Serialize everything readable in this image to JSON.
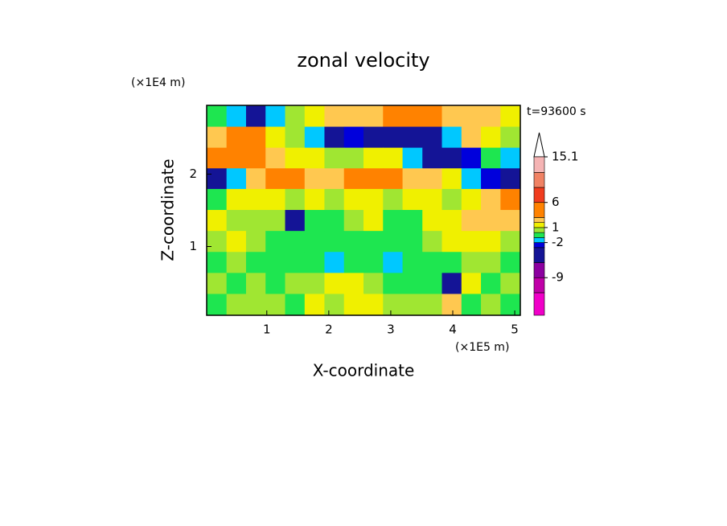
{
  "chart_data": {
    "type": "contour",
    "title": "zonal velocity",
    "x_label": "X-coordinate",
    "y_label": "Z-coordinate",
    "x_unit": "(×1E5 m)",
    "y_unit": "(×1E4 m)",
    "time_label": "t=93600 s",
    "xlim": [
      0.03,
      5.09
    ],
    "ylim": [
      0.05,
      2.95
    ],
    "xticks": [
      1,
      2,
      3,
      4,
      5
    ],
    "yticks": [
      1,
      2
    ],
    "x": [
      0.19,
      0.51,
      0.82,
      1.14,
      1.45,
      1.77,
      2.09,
      2.4,
      2.72,
      3.03,
      3.35,
      3.67,
      3.98,
      4.3,
      4.61,
      4.93
    ],
    "y": [
      2.8,
      2.51,
      2.22,
      1.94,
      1.65,
      1.36,
      1.07,
      0.78,
      0.49,
      0.2
    ],
    "z": [
      [
        -0.5,
        -1.5,
        -4,
        -1.5,
        0.5,
        1.5,
        2.5,
        2.5,
        2.5,
        3,
        3,
        4,
        2.5,
        2.5,
        2.5,
        1.5
      ],
      [
        2.5,
        4,
        3,
        1.5,
        0.5,
        -1.5,
        -4,
        -2.5,
        -4,
        -4,
        -4,
        -4,
        -1.5,
        2.5,
        1.5,
        0.5
      ],
      [
        4,
        4,
        3,
        2.5,
        1.5,
        1.5,
        0.5,
        0.5,
        1.5,
        1.5,
        -1.5,
        -4,
        -4,
        -2.5,
        -0.5,
        -1.5
      ],
      [
        -4,
        -1.5,
        2.5,
        3,
        3,
        2.5,
        2.5,
        3,
        4,
        3,
        2.5,
        2.5,
        1.5,
        -1.5,
        -2.5,
        -4
      ],
      [
        -0.5,
        1.5,
        1.5,
        1.5,
        0.5,
        1.5,
        0.5,
        1.5,
        1.5,
        0.5,
        1.5,
        1.5,
        0.5,
        1.5,
        2.5,
        3
      ],
      [
        1.5,
        0.5,
        0.5,
        0.5,
        -4,
        -0.5,
        -0.5,
        0.5,
        1.5,
        -0.5,
        -0.5,
        1.5,
        1.5,
        2.5,
        2.5,
        2.5
      ],
      [
        0.5,
        1.5,
        0.5,
        -0.5,
        -0.5,
        -0.5,
        -0.5,
        -0.5,
        -0.5,
        -0.5,
        -0.5,
        0.5,
        1.5,
        1.5,
        1.5,
        0.5
      ],
      [
        -0.5,
        0.5,
        -0.5,
        -0.5,
        -0.5,
        -0.5,
        -1.5,
        -0.5,
        -0.5,
        -1.5,
        -0.5,
        -0.5,
        -0.5,
        0.5,
        0.5,
        -0.5
      ],
      [
        0.5,
        -0.5,
        0.5,
        -0.5,
        0.5,
        0.5,
        1.5,
        1.5,
        0.5,
        -0.5,
        -0.5,
        -0.5,
        -4,
        1.5,
        -0.5,
        0.5
      ],
      [
        -0.5,
        0.5,
        0.5,
        0.5,
        -0.5,
        1.5,
        0.5,
        1.5,
        1.5,
        0.5,
        0.5,
        0.5,
        2.5,
        -0.5,
        0.5,
        -0.5
      ]
    ],
    "colorbar": {
      "levels": [
        -16.5,
        -12,
        -9,
        -6,
        -3,
        -2,
        -1,
        0,
        1,
        2,
        3,
        6,
        9,
        12,
        15.1
      ],
      "colors": [
        "#f000c8",
        "#c000a8",
        "#8c00a0",
        "#141496",
        "#0000dc",
        "#00c8ff",
        "#1ee650",
        "#a0e632",
        "#f0f000",
        "#ffc850",
        "#ff8200",
        "#f03c1e",
        "#f08264",
        "#f5b4b4"
      ],
      "ticks": [
        -9,
        -2,
        1,
        6,
        15.1
      ]
    }
  }
}
